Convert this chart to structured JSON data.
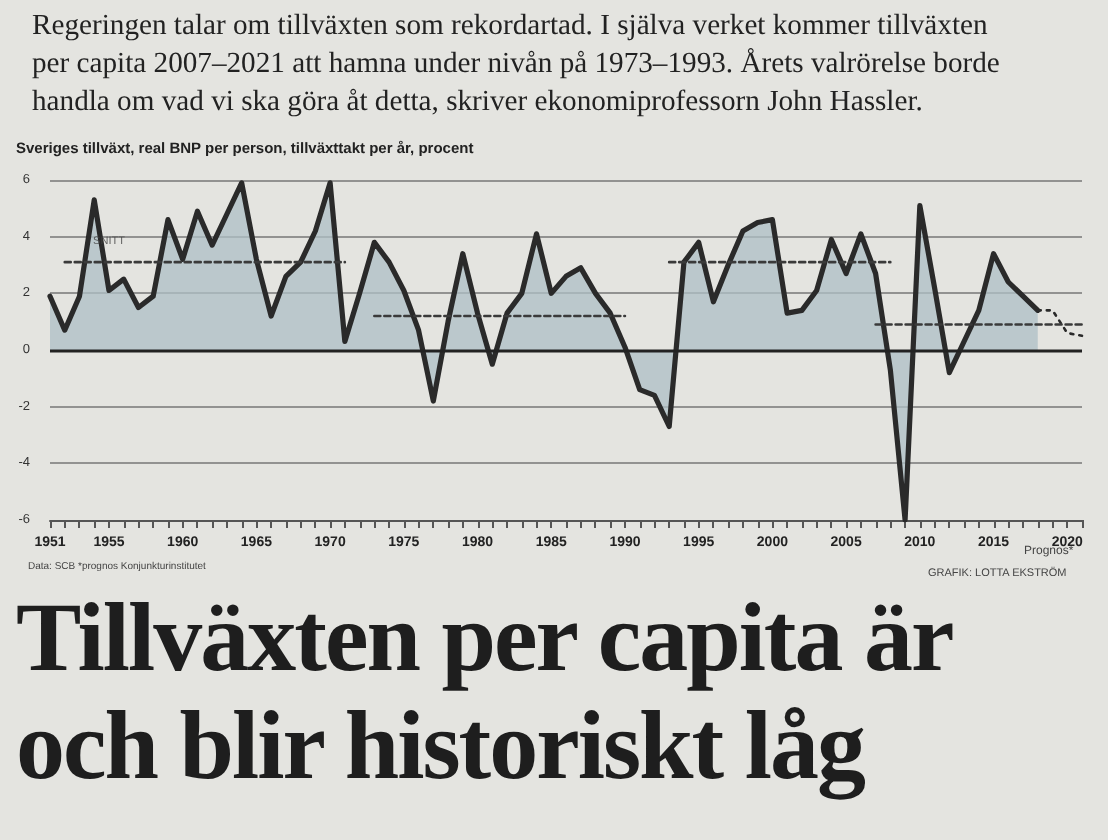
{
  "chart_data": {
    "type": "area",
    "title": "Tillväxten per capita är och blir historiskt låg",
    "subtitle": "Regeringen talar om tillväxten som rekordartad. I själva verket kommer tillväxten per capita 2007–2021 att hamna under nivån på 1973–1993. Årets valrörelse borde handla om vad vi ska göra åt detta, skriver ekonomiprofessorn John Hassler.",
    "ylabel": "Sveriges tillväxt, real BNP per person, tillväxttakt per år, procent",
    "annotations": [
      {
        "text": "SNITT",
        "x": 1955,
        "y": 3.1
      },
      "Prognos*",
      "Data: SCB *prognos Konjunkturinstitutet",
      "GRAFIK: LOTTA EKSTRÖM"
    ],
    "x": [
      1951,
      1952,
      1953,
      1954,
      1955,
      1956,
      1957,
      1958,
      1959,
      1960,
      1961,
      1962,
      1963,
      1964,
      1965,
      1966,
      1967,
      1968,
      1969,
      1970,
      1971,
      1972,
      1973,
      1974,
      1975,
      1976,
      1977,
      1978,
      1979,
      1980,
      1981,
      1982,
      1983,
      1984,
      1985,
      1986,
      1987,
      1988,
      1989,
      1990,
      1991,
      1992,
      1993,
      1994,
      1995,
      1996,
      1997,
      1998,
      1999,
      2000,
      2001,
      2002,
      2003,
      2004,
      2005,
      2006,
      2007,
      2008,
      2009,
      2010,
      2011,
      2012,
      2013,
      2014,
      2015,
      2016,
      2017,
      2018
    ],
    "series": [
      {
        "color": "#2a2a2a",
        "line_style": "solid",
        "values": [
          1.9,
          0.7,
          1.9,
          5.3,
          2.1,
          2.5,
          1.5,
          1.9,
          4.6,
          3.2,
          4.9,
          3.7,
          4.8,
          5.9,
          3.2,
          1.2,
          2.6,
          3.1,
          4.2,
          5.9,
          0.3,
          2.0,
          3.8,
          3.1,
          2.1,
          0.7,
          -1.8,
          1.0,
          3.4,
          1.3,
          -0.5,
          1.3,
          2.0,
          4.1,
          2.0,
          2.6,
          2.9,
          2.0,
          1.3,
          0.1,
          -1.4,
          -1.6,
          -2.7,
          3.1,
          3.8,
          1.7,
          3.0,
          4.2,
          4.5,
          4.6,
          1.3,
          1.4,
          2.1,
          3.9,
          2.7,
          4.1,
          2.7,
          -0.7,
          -6.0,
          5.1,
          2.2,
          -0.8,
          0.3,
          1.4,
          3.4,
          2.4,
          1.9,
          1.4
        ]
      },
      {
        "type": "line",
        "color": "#2a2a2a",
        "line_style": "dotted",
        "x": [
          2018,
          2019,
          2020,
          2021
        ],
        "values": [
          1.4,
          1.4,
          0.6,
          0.5
        ]
      },
      {
        "type": "line",
        "color": "#3a3a3a",
        "line_style": "dashed",
        "x": [
          1952,
          1971
        ],
        "values": [
          3.1,
          3.1
        ]
      },
      {
        "type": "line",
        "color": "#3a3a3a",
        "line_style": "dashed",
        "x": [
          1973,
          1990
        ],
        "values": [
          1.2,
          1.2
        ]
      },
      {
        "type": "line",
        "color": "#3a3a3a",
        "line_style": "dashed",
        "x": [
          1993,
          2008
        ],
        "values": [
          3.1,
          3.1
        ]
      },
      {
        "type": "line",
        "color": "#3a3a3a",
        "line_style": "dashed",
        "x": [
          2007,
          2021
        ],
        "values": [
          0.9,
          0.9
        ]
      }
    ],
    "xlim": [
      1951,
      2021
    ],
    "xticks": [
      1951,
      {
        "value": 1952,
        "label": null
      },
      {
        "value": 1953,
        "label": null
      },
      {
        "value": 1954,
        "label": null
      },
      1955,
      {
        "value": 1956,
        "label": null
      },
      {
        "value": 1957,
        "label": null
      },
      {
        "value": 1958,
        "label": null
      },
      {
        "value": 1959,
        "label": null
      },
      1960,
      {
        "value": 1961,
        "label": null
      },
      {
        "value": 1962,
        "label": null
      },
      {
        "value": 1963,
        "label": null
      },
      {
        "value": 1964,
        "label": null
      },
      1965,
      {
        "value": 1966,
        "label": null
      },
      {
        "value": 1967,
        "label": null
      },
      {
        "value": 1968,
        "label": null
      },
      {
        "value": 1969,
        "label": null
      },
      1970,
      {
        "value": 1971,
        "label": null
      },
      {
        "value": 1972,
        "label": null
      },
      {
        "value": 1973,
        "label": null
      },
      {
        "value": 1974,
        "label": null
      },
      1975,
      {
        "value": 1976,
        "label": null
      },
      {
        "value": 1977,
        "label": null
      },
      {
        "value": 1978,
        "label": null
      },
      {
        "value": 1979,
        "label": null
      },
      1980,
      {
        "value": 1981,
        "label": null
      },
      {
        "value": 1982,
        "label": null
      },
      {
        "value": 1983,
        "label": null
      },
      {
        "value": 1984,
        "label": null
      },
      1985,
      {
        "value": 1986,
        "label": null
      },
      {
        "value": 1987,
        "label": null
      },
      {
        "value": 1988,
        "label": null
      },
      {
        "value": 1989,
        "label": null
      },
      1990,
      {
        "value": 1991,
        "label": null
      },
      {
        "value": 1992,
        "label": null
      },
      {
        "value": 1993,
        "label": null
      },
      {
        "value": 1994,
        "label": null
      },
      1995,
      {
        "value": 1996,
        "label": null
      },
      {
        "value": 1997,
        "label": null
      },
      {
        "value": 1998,
        "label": null
      },
      {
        "value": 1999,
        "label": null
      },
      2000,
      {
        "value": 2001,
        "label": null
      },
      {
        "value": 2002,
        "label": null
      },
      {
        "value": 2003,
        "label": null
      },
      {
        "value": 2004,
        "label": null
      },
      2005,
      {
        "value": 2006,
        "label": null
      },
      {
        "value": 2007,
        "label": null
      },
      {
        "value": 2008,
        "label": null
      },
      {
        "value": 2009,
        "label": null
      },
      2010,
      {
        "value": 2011,
        "label": null
      },
      {
        "value": 2012,
        "label": null
      },
      {
        "value": 2013,
        "label": null
      },
      {
        "value": 2014,
        "label": null
      },
      2015,
      {
        "value": 2016,
        "label": null
      },
      {
        "value": 2017,
        "label": null
      },
      {
        "value": 2018,
        "label": null
      },
      {
        "value": 2019,
        "label": null
      },
      2020,
      {
        "value": 2021,
        "label": null
      }
    ],
    "ylim": [
      -6,
      6
    ],
    "yticks": [
      -6,
      -4,
      -2,
      0,
      2,
      4,
      6
    ],
    "ref_lines": [
      {
        "axis": "y",
        "value": 0,
        "color": "#222222"
      }
    ],
    "grid": "y"
  }
}
